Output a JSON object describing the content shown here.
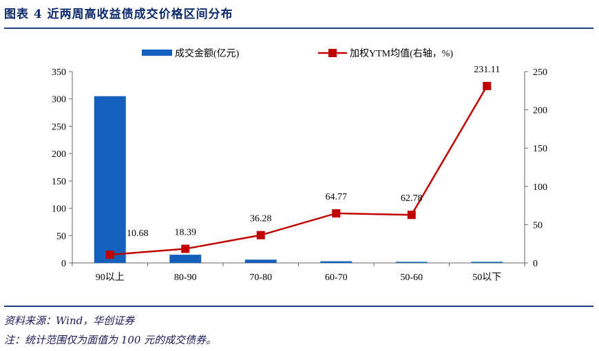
{
  "header": {
    "title": "图表 4   近两周高收益债成交价格区间分布"
  },
  "footer": {
    "source": "资料来源：Wind，华创证券",
    "note": "注：统计范围仅为面值为 100 元的成交债券。"
  },
  "chart_data": {
    "type": "bar+line",
    "categories": [
      "90以上",
      "80-90",
      "70-80",
      "60-70",
      "50-60",
      "50以下"
    ],
    "series": [
      {
        "name": "成交金额(亿元)",
        "type": "bar",
        "axis": "left",
        "values": [
          305,
          15,
          6,
          3,
          2,
          2
        ],
        "color": "#1560bd"
      },
      {
        "name": "加权YTM均值(右轴，%)",
        "type": "line",
        "axis": "right",
        "values": [
          10.68,
          18.39,
          36.28,
          64.77,
          62.78,
          231.11
        ],
        "labels": [
          "10.68",
          "18.39",
          "36.28",
          "64.77",
          "62.78",
          "231.11"
        ],
        "color": "#c00000"
      }
    ],
    "y_left": {
      "min": 0,
      "max": 350,
      "ticks": [
        "0",
        "50",
        "100",
        "150",
        "200",
        "250",
        "300",
        "350"
      ]
    },
    "y_right": {
      "min": 0,
      "max": 250,
      "ticks": [
        "0",
        "50",
        "100",
        "150",
        "200",
        "250"
      ]
    },
    "legend_position": "top"
  }
}
